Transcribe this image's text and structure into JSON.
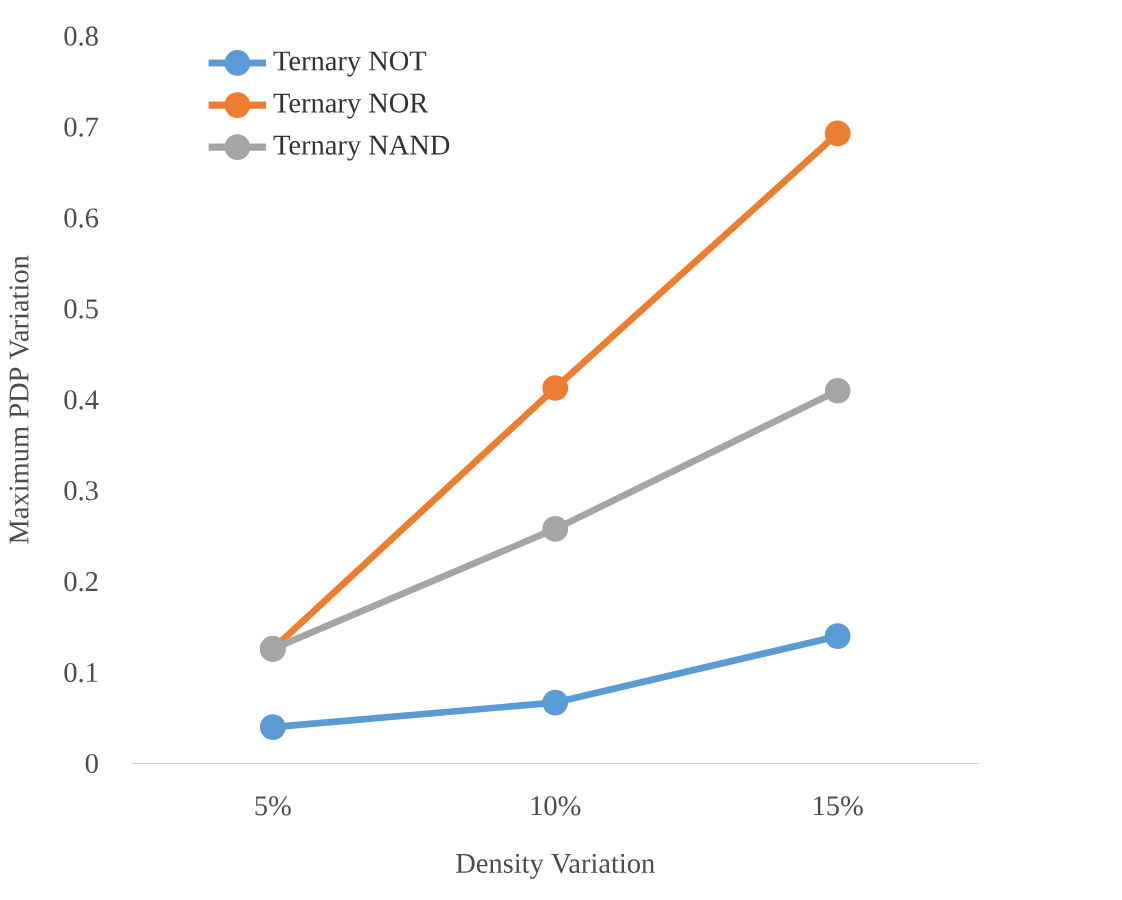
{
  "chart_data": {
    "type": "line",
    "xlabel": "Density Variation",
    "ylabel": "Maximum PDP Variation",
    "categories": [
      "5%",
      "10%",
      "15%"
    ],
    "series": [
      {
        "name": "Ternary NOT",
        "color": "#5b9bd5",
        "values": [
          0.04,
          0.067,
          0.14
        ]
      },
      {
        "name": "Ternary NOR",
        "color": "#ed7d31",
        "values": [
          0.126,
          0.413,
          0.693
        ]
      },
      {
        "name": "Ternary NAND",
        "color": "#a5a5a5",
        "values": [
          0.126,
          0.258,
          0.41
        ]
      }
    ],
    "ylim": [
      0,
      0.8
    ],
    "yticks": [
      0,
      0.1,
      0.2,
      0.3,
      0.4,
      0.5,
      0.6,
      0.7,
      0.8
    ],
    "grid": false,
    "legend": "top left",
    "marker": "circle",
    "line_style": "solid"
  }
}
